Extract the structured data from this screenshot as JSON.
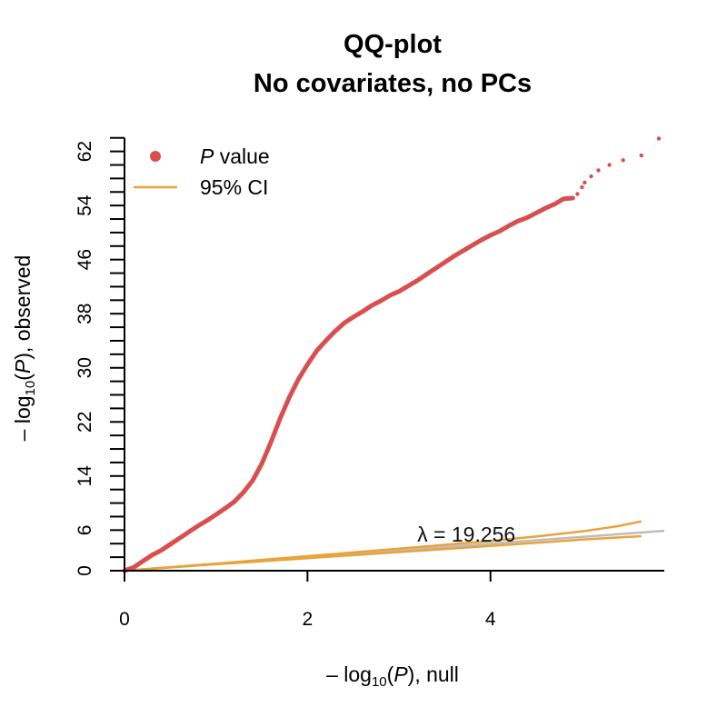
{
  "chart_data": {
    "type": "scatter",
    "title": [
      "QQ-plot",
      "No covariates, no PCs"
    ],
    "xlabel": {
      "prefix": "– log",
      "sub": "10",
      "mid": "(",
      "italic": "P",
      "suffix": "), null"
    },
    "ylabel": {
      "prefix": "– log",
      "sub": "10",
      "mid": "(",
      "italic": "P",
      "suffix": "), observed"
    },
    "xlim": [
      0,
      5.9
    ],
    "ylim": [
      0,
      64.5
    ],
    "xticks": [
      0,
      2,
      4
    ],
    "xtick_labels": [
      "0",
      "2",
      "4"
    ],
    "yticks": [
      0,
      6,
      14,
      22,
      30,
      38,
      46,
      54,
      62
    ],
    "ytick_labels": [
      "0",
      "6",
      "14",
      "22",
      "30",
      "38",
      "46",
      "54",
      "62"
    ],
    "y_minor_step": 2,
    "legend_position": "top-left",
    "legend": [
      {
        "label_italic": "P",
        "label": " value",
        "marker": "point"
      },
      {
        "label": "95% CI",
        "marker": "line"
      }
    ],
    "lambda_text": {
      "symbol": "λ",
      "eq": " = ",
      "value": "19.256"
    },
    "lambda_position": {
      "x": 3.2,
      "y": 4.3
    },
    "colors": {
      "points": "#d94f4f",
      "ci": "#e8a33b",
      "null_line": "#bdbdbd",
      "axis": "#000000"
    },
    "series": [
      {
        "name": "P value",
        "role": "observed",
        "points": [
          [
            0.0,
            0.0
          ],
          [
            0.1,
            0.5
          ],
          [
            0.2,
            1.4
          ],
          [
            0.3,
            2.3
          ],
          [
            0.4,
            3.0
          ],
          [
            0.5,
            3.9
          ],
          [
            0.6,
            4.8
          ],
          [
            0.7,
            5.7
          ],
          [
            0.8,
            6.6
          ],
          [
            0.9,
            7.4
          ],
          [
            1.0,
            8.3
          ],
          [
            1.1,
            9.2
          ],
          [
            1.2,
            10.2
          ],
          [
            1.3,
            11.6
          ],
          [
            1.4,
            13.3
          ],
          [
            1.5,
            15.8
          ],
          [
            1.6,
            19.0
          ],
          [
            1.7,
            22.5
          ],
          [
            1.8,
            25.6
          ],
          [
            1.9,
            28.3
          ],
          [
            2.0,
            30.5
          ],
          [
            2.1,
            32.5
          ],
          [
            2.2,
            34.0
          ],
          [
            2.3,
            35.4
          ],
          [
            2.4,
            36.6
          ],
          [
            2.5,
            37.5
          ],
          [
            2.6,
            38.3
          ],
          [
            2.7,
            39.2
          ],
          [
            2.8,
            39.9
          ],
          [
            2.9,
            40.7
          ],
          [
            3.0,
            41.3
          ],
          [
            3.1,
            42.1
          ],
          [
            3.2,
            42.9
          ],
          [
            3.3,
            43.8
          ],
          [
            3.4,
            44.7
          ],
          [
            3.5,
            45.6
          ],
          [
            3.6,
            46.5
          ],
          [
            3.7,
            47.3
          ],
          [
            3.8,
            48.1
          ],
          [
            3.9,
            48.9
          ],
          [
            4.0,
            49.6
          ],
          [
            4.1,
            50.2
          ],
          [
            4.2,
            51.0
          ],
          [
            4.3,
            51.7
          ],
          [
            4.4,
            52.2
          ],
          [
            4.5,
            52.9
          ],
          [
            4.6,
            53.6
          ],
          [
            4.7,
            54.2
          ],
          [
            4.8,
            55.0
          ],
          [
            4.9,
            55.1
          ],
          [
            4.95,
            55.7
          ],
          [
            5.0,
            56.7
          ],
          [
            5.03,
            57.4
          ],
          [
            5.1,
            58.3
          ],
          [
            5.18,
            59.2
          ],
          [
            5.3,
            60.0
          ],
          [
            5.45,
            60.7
          ],
          [
            5.65,
            61.4
          ],
          [
            5.84,
            63.9
          ]
        ]
      },
      {
        "name": "95% CI upper",
        "role": "ci_upper",
        "points": [
          [
            0,
            0
          ],
          [
            1,
            1.05
          ],
          [
            2,
            2.15
          ],
          [
            3,
            3.25
          ],
          [
            4,
            4.4
          ],
          [
            4.5,
            5.05
          ],
          [
            5.0,
            5.8
          ],
          [
            5.4,
            6.6
          ],
          [
            5.65,
            7.3
          ]
        ]
      },
      {
        "name": "95% CI lower",
        "role": "ci_lower",
        "points": [
          [
            0,
            0
          ],
          [
            1,
            0.95
          ],
          [
            2,
            1.85
          ],
          [
            3,
            2.75
          ],
          [
            4,
            3.65
          ],
          [
            5.0,
            4.6
          ],
          [
            5.65,
            5.1
          ]
        ]
      },
      {
        "name": "null",
        "role": "null_line",
        "points": [
          [
            0,
            0
          ],
          [
            5.9,
            5.9
          ]
        ]
      }
    ]
  }
}
